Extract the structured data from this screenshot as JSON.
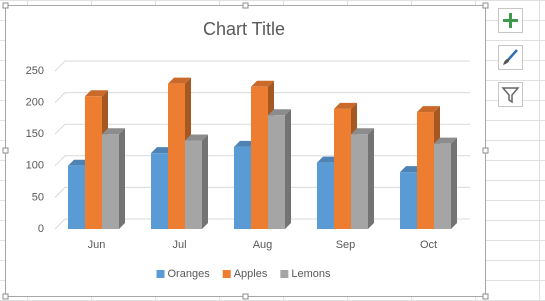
{
  "chart_data": {
    "type": "bar3d",
    "title": "Chart Title",
    "categories": [
      "Jun",
      "Jul",
      "Aug",
      "Sep",
      "Oct"
    ],
    "series": [
      {
        "name": "Oranges",
        "color": "#5b9bd5",
        "values": [
          100,
          120,
          130,
          105,
          90
        ]
      },
      {
        "name": "Apples",
        "color": "#ed7d31",
        "values": [
          210,
          230,
          225,
          190,
          185
        ]
      },
      {
        "name": "Lemons",
        "color": "#a5a5a5",
        "values": [
          150,
          140,
          180,
          150,
          135
        ]
      }
    ],
    "ylim": [
      0,
      250
    ],
    "yticks": [
      0,
      50,
      100,
      150,
      200,
      250
    ],
    "grid": true,
    "legend": "bottom"
  }
}
